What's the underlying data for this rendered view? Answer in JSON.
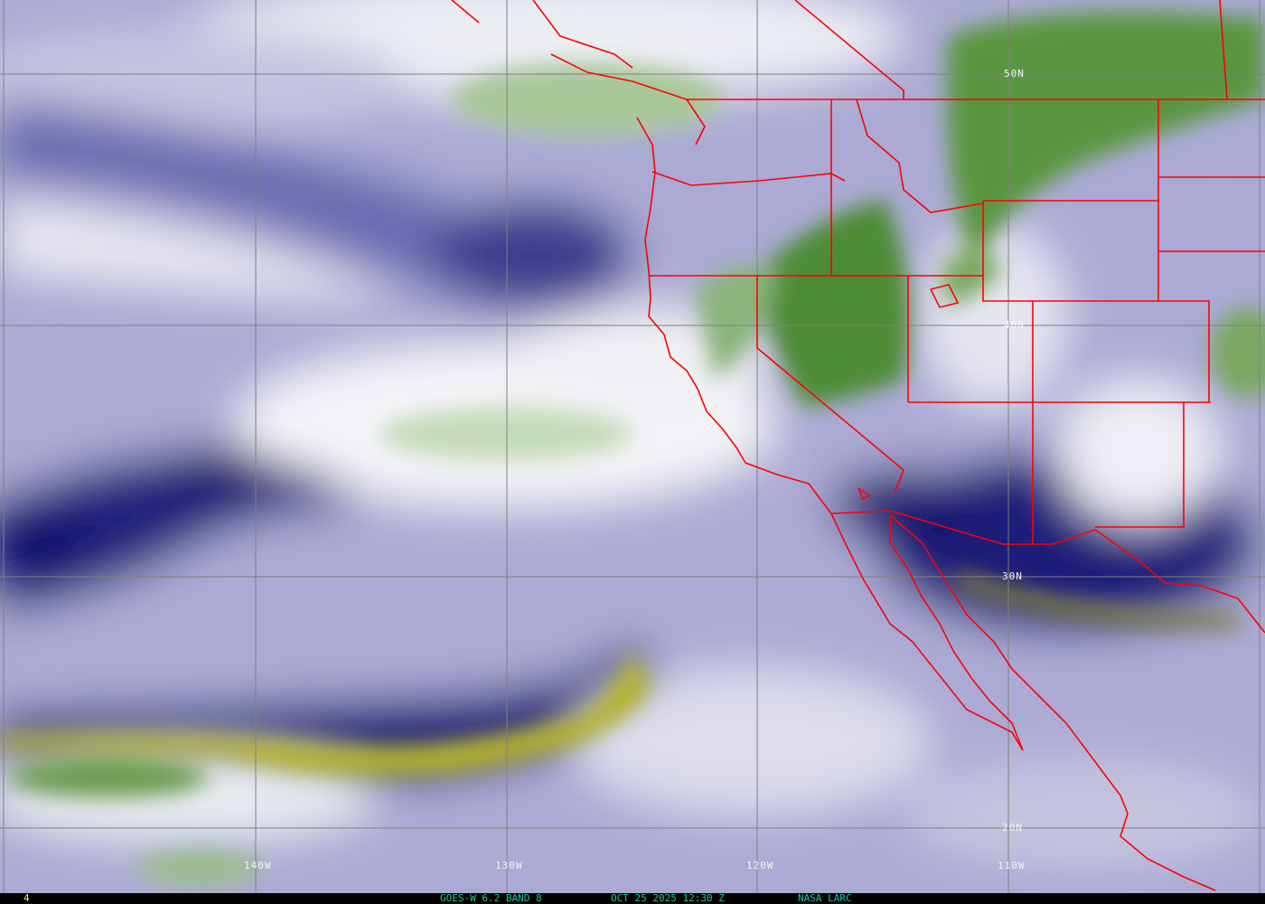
{
  "footer": {
    "frame_number": "4",
    "satellite": "GOES-W 6.2 BAND 8",
    "datetime": "OCT 25 2025 12:30 Z",
    "credit": "NASA LARC"
  },
  "grid": {
    "latitudes": [
      "50N",
      "40N",
      "30N",
      "20N"
    ],
    "longitudes": [
      "140W",
      "130W",
      "120W",
      "110W"
    ]
  },
  "colors": {
    "border_lines": "#ff0000",
    "grid_lines": "#808080",
    "footer_text": "#20c8a0",
    "frame_number": "#ffff00",
    "dry_air": "#10106e",
    "very_dry_air": "#c8c830",
    "moist_air": "#ffffff",
    "cloud_tops": "#4a8a2a"
  }
}
